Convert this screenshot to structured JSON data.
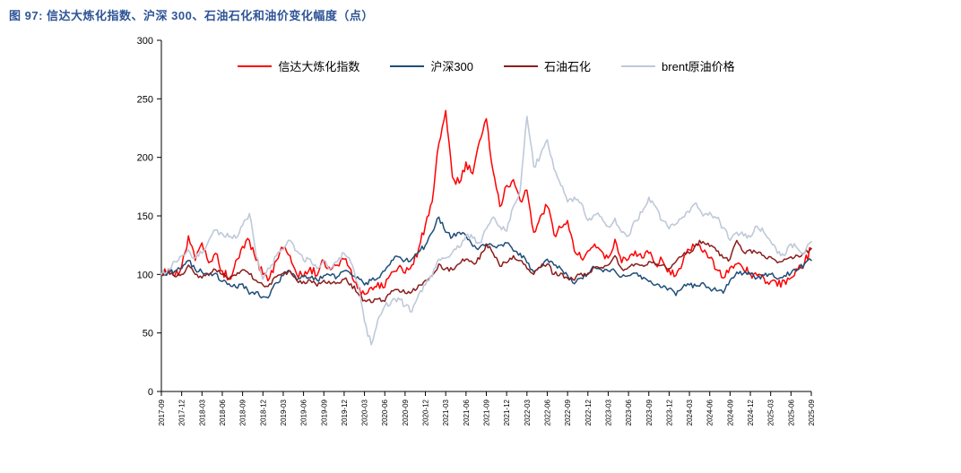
{
  "title": "图 97:  信达大炼化指数、沪深 300、石油石化和油价变化幅度（点）",
  "chart_data": {
    "type": "line",
    "title": "信达大炼化指数、沪深300、石油石化和油价变化幅度（点）",
    "xlabel": "",
    "ylabel": "",
    "ylim": [
      0,
      300
    ],
    "y_ticks": [
      0,
      50,
      100,
      150,
      200,
      250,
      300
    ],
    "grid": false,
    "legend_position": "top-center",
    "x_unit": "month",
    "x_tick_labels": [
      "2017-09",
      "2017-12",
      "2018-03",
      "2018-06",
      "2018-09",
      "2018-12",
      "2019-03",
      "2019-06",
      "2019-09",
      "2019-12",
      "2020-03",
      "2020-06",
      "2020-09",
      "2020-12",
      "2021-03",
      "2021-06",
      "2021-09",
      "2021-12",
      "2022-03",
      "2022-06",
      "2022-09",
      "2022-12",
      "2023-03",
      "2023-06",
      "2023-09",
      "2023-12",
      "2024-03",
      "2024-06",
      "2024-09",
      "2024-12",
      "2025-03",
      "2025-06",
      "2025-09"
    ],
    "points_per_tick": 3,
    "series": [
      {
        "name": "信达大炼化指数",
        "color": "#ff0000",
        "values": [
          100,
          104,
          99,
          107,
          133,
          112,
          127,
          110,
          118,
          103,
          96,
          112,
          124,
          129,
          112,
          100,
          97,
          112,
          122,
          116,
          100,
          98,
          106,
          99,
          112,
          104,
          108,
          113,
          104,
          88,
          83,
          89,
          93,
          89,
          102,
          106,
          101,
          108,
          122,
          142,
          162,
          212,
          240,
          183,
          178,
          196,
          186,
          214,
          233,
          188,
          158,
          176,
          181,
          163,
          172,
          136,
          150,
          158,
          134,
          140,
          146,
          120,
          114,
          120,
          126,
          120,
          114,
          130,
          110,
          113,
          120,
          114,
          118,
          109,
          112,
          104,
          99,
          110,
          121,
          126,
          119,
          114,
          104,
          97,
          106,
          109,
          104,
          101,
          99,
          97,
          94,
          90,
          95,
          97,
          104,
          110,
          122
        ]
      },
      {
        "name": "沪深300",
        "color": "#1f4e79",
        "values": [
          100,
          102,
          103,
          105,
          112,
          104,
          102,
          99,
          101,
          94,
          92,
          89,
          92,
          83,
          85,
          81,
          82,
          93,
          99,
          103,
          95,
          98,
          97,
          95,
          99,
          99,
          98,
          103,
          100,
          98,
          91,
          95,
          97,
          103,
          112,
          115,
          112,
          113,
          119,
          125,
          136,
          149,
          136,
          132,
          136,
          133,
          124,
          123,
          126,
          124,
          125,
          127,
          120,
          118,
          110,
          102,
          106,
          113,
          108,
          105,
          99,
          92,
          97,
          101,
          106,
          104,
          103,
          103,
          98,
          99,
          101,
          96,
          94,
          91,
          89,
          88,
          82,
          89,
          91,
          90,
          93,
          88,
          86,
          84,
          95,
          102,
          101,
          100,
          97,
          99,
          100,
          96,
          99,
          101,
          104,
          109,
          112
        ]
      },
      {
        "name": "石油石化",
        "color": "#8b1d1d",
        "values": [
          100,
          103,
          98,
          100,
          108,
          100,
          97,
          100,
          104,
          100,
          96,
          99,
          104,
          100,
          95,
          91,
          92,
          98,
          101,
          103,
          95,
          94,
          95,
          90,
          95,
          92,
          93,
          96,
          92,
          84,
          78,
          76,
          79,
          77,
          86,
          87,
          84,
          85,
          91,
          95,
          99,
          109,
          105,
          104,
          109,
          113,
          110,
          113,
          126,
          118,
          107,
          110,
          116,
          112,
          105,
          100,
          106,
          109,
          100,
          101,
          97,
          95,
          101,
          100,
          106,
          106,
          108,
          116,
          105,
          106,
          109,
          108,
          111,
          108,
          108,
          105,
          111,
          116,
          118,
          126,
          128,
          124,
          120,
          114,
          113,
          129,
          119,
          121,
          118,
          116,
          115,
          110,
          113,
          115,
          116,
          118,
          122
        ]
      },
      {
        "name": "brent原油价格",
        "color": "#bfc9d9",
        "values": [
          100,
          105,
          111,
          116,
          121,
          114,
          118,
          129,
          138,
          135,
          132,
          131,
          142,
          152,
          116,
          96,
          105,
          116,
          121,
          129,
          120,
          112,
          113,
          105,
          112,
          105,
          111,
          118,
          110,
          92,
          60,
          40,
          62,
          73,
          77,
          80,
          73,
          68,
          83,
          91,
          98,
          113,
          114,
          119,
          123,
          133,
          131,
          127,
          139,
          149,
          141,
          137,
          158,
          172,
          235,
          192,
          202,
          215,
          190,
          176,
          162,
          166,
          161,
          146,
          151,
          149,
          141,
          148,
          136,
          133,
          146,
          153,
          166,
          158,
          146,
          139,
          143,
          149,
          153,
          161,
          150,
          153,
          148,
          140,
          129,
          136,
          133,
          132,
          141,
          136,
          128,
          118,
          116,
          126,
          122,
          118,
          128
        ]
      }
    ]
  },
  "colors": {
    "title": "#2e5496",
    "axis": "#000000",
    "background": "#ffffff"
  }
}
